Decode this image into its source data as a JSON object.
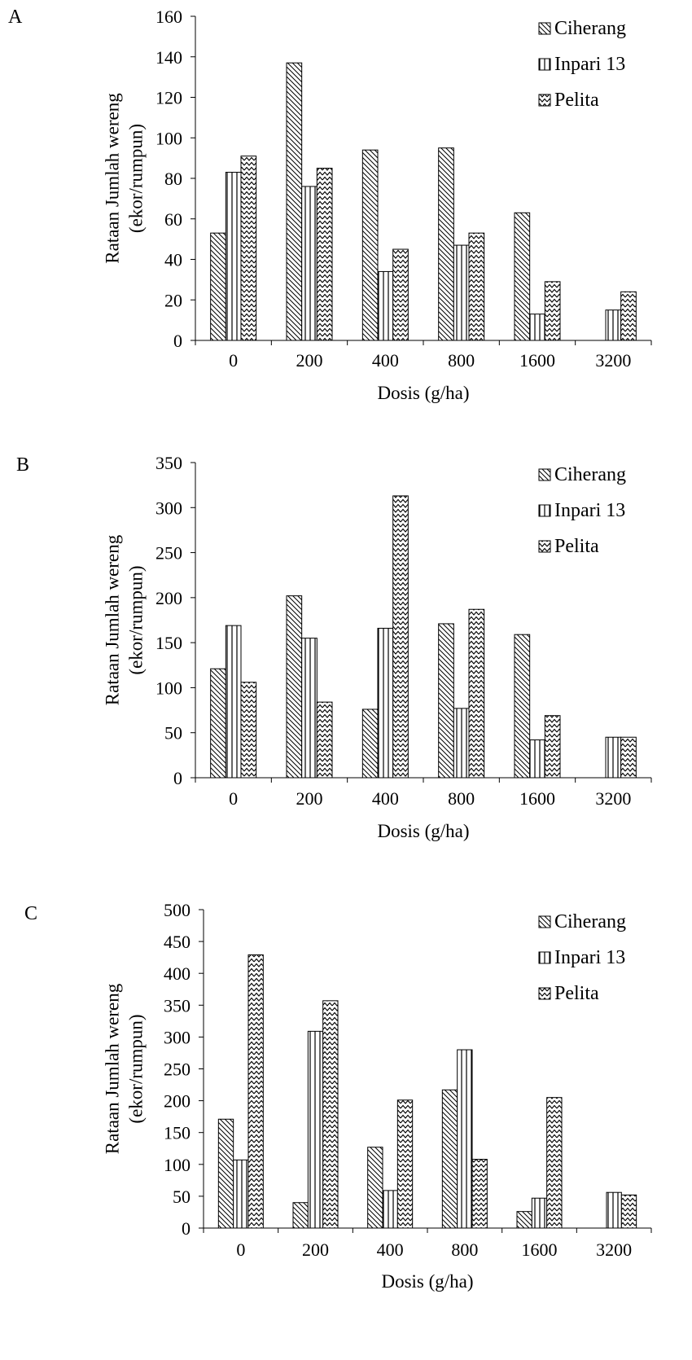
{
  "figure": {
    "series_styles": [
      {
        "name": "Ciherang",
        "pattern": "diagonal-hatch"
      },
      {
        "name": "Inpari 13",
        "pattern": "vertical-stripes"
      },
      {
        "name": "Pelita",
        "pattern": "zigzag"
      }
    ]
  },
  "chart_data": [
    {
      "panel": "A",
      "type": "bar",
      "xlabel": "Dosis (g/ha)",
      "ylabel": "Rataan Jumlah wereng (ekor/rumpun)",
      "categories": [
        "0",
        "200",
        "400",
        "800",
        "1600",
        "3200"
      ],
      "ylim": [
        0,
        160
      ],
      "yticks": [
        0,
        20,
        40,
        60,
        80,
        100,
        120,
        140,
        160
      ],
      "legend_position": "top-right",
      "grid": false,
      "series": [
        {
          "name": "Ciherang",
          "values": [
            53,
            137,
            94,
            95,
            63,
            0
          ]
        },
        {
          "name": "Inpari 13",
          "values": [
            83,
            76,
            34,
            47,
            13,
            15
          ]
        },
        {
          "name": "Pelita",
          "values": [
            91,
            85,
            45,
            53,
            29,
            24
          ]
        }
      ]
    },
    {
      "panel": "B",
      "type": "bar",
      "xlabel": "Dosis (g/ha)",
      "ylabel": "Rataan Jumlah wereng (ekor/rumpun)",
      "categories": [
        "0",
        "200",
        "400",
        "800",
        "1600",
        "3200"
      ],
      "ylim": [
        0,
        350
      ],
      "yticks": [
        0,
        50,
        100,
        150,
        200,
        250,
        300,
        350
      ],
      "legend_position": "top-right",
      "grid": false,
      "series": [
        {
          "name": "Ciherang",
          "values": [
            121,
            202,
            76,
            171,
            159,
            0
          ]
        },
        {
          "name": "Inpari 13",
          "values": [
            169,
            155,
            166,
            77,
            42,
            45
          ]
        },
        {
          "name": "Pelita",
          "values": [
            106,
            84,
            313,
            187,
            69,
            45
          ]
        }
      ]
    },
    {
      "panel": "C",
      "type": "bar",
      "xlabel": "Dosis (g/ha)",
      "ylabel": "Rataan Jumlah wereng (ekor/rumpun)",
      "categories": [
        "0",
        "200",
        "400",
        "800",
        "1600",
        "3200"
      ],
      "ylim": [
        0,
        500
      ],
      "yticks": [
        0,
        50,
        100,
        150,
        200,
        250,
        300,
        350,
        400,
        450,
        500
      ],
      "legend_position": "top-right",
      "grid": false,
      "series": [
        {
          "name": "Ciherang",
          "values": [
            171,
            40,
            127,
            217,
            26,
            0
          ]
        },
        {
          "name": "Inpari 13",
          "values": [
            107,
            309,
            59,
            280,
            47,
            56
          ]
        },
        {
          "name": "Pelita",
          "values": [
            429,
            357,
            201,
            108,
            205,
            52
          ]
        }
      ]
    }
  ]
}
